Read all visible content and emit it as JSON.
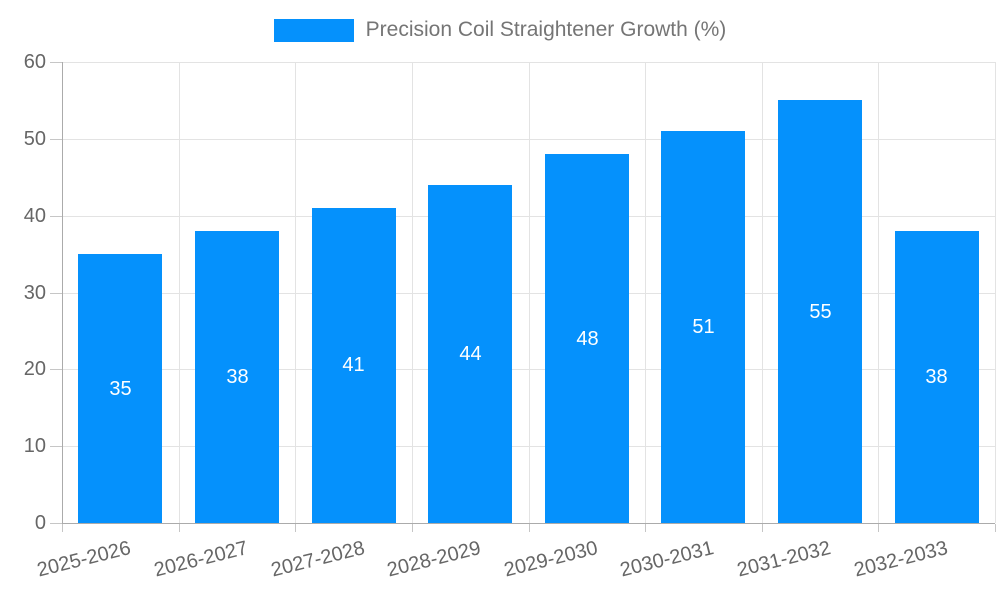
{
  "legend": {
    "items": [
      {
        "label": "Precision Coil Straightener Growth (%)",
        "color": "#0591fc"
      }
    ]
  },
  "chart_data": {
    "type": "bar",
    "title": "Precision Coil Straightener Growth (%)",
    "categories": [
      "2025-2026",
      "2026-2027",
      "2027-2028",
      "2028-2029",
      "2029-2030",
      "2030-2031",
      "2031-2032",
      "2032-2033"
    ],
    "values": [
      35,
      38,
      41,
      44,
      48,
      51,
      55,
      38
    ],
    "xlabel": "",
    "ylabel": "",
    "ylim": [
      0,
      60
    ],
    "yticks": [
      0,
      10,
      20,
      30,
      40,
      50,
      60
    ],
    "grid": true,
    "legend_position": "top-center",
    "bar_color": "#0591fc",
    "value_label_color": "#ffffff",
    "x_tick_rotation_deg": -14
  },
  "style": {
    "background": "#ffffff",
    "grid_color": "#e3e3e3",
    "axis_color": "#ababab",
    "tick_color": "#c6c6c6",
    "tick_text_color": "#666666",
    "legend_text_color": "#757575"
  }
}
